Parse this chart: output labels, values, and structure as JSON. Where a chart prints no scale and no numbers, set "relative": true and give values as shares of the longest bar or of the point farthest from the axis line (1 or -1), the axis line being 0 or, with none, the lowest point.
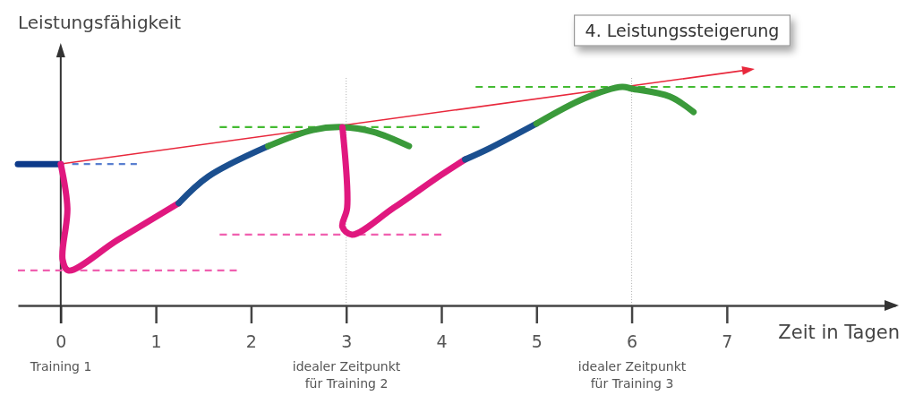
{
  "chart_data": {
    "type": "line",
    "relative": true,
    "xlabel": "Zeit in Tagen",
    "ylabel": "Leistungsfähigkeit",
    "xlim": [
      -0.45,
      8.77
    ],
    "xticks": [
      0,
      1,
      2,
      3,
      4,
      5,
      6,
      7
    ],
    "tick_labels": "x",
    "marker": "none",
    "annotations": [
      "4. Leistungssteigerung",
      "Training 1",
      "idealer Zeitpunkt\nfür Training 2",
      "idealer Zeitpunkt\nfür Training 3"
    ],
    "ref_lines": [
      {
        "axis": "x",
        "value": 3,
        "color": "#b0b0b0",
        "line_style": "dotted"
      },
      {
        "axis": "x",
        "value": 6,
        "color": "#b0b0b0",
        "line_style": "dotted"
      }
    ],
    "series": [
      {
        "x": [
          0.12,
          0.8
        ],
        "values": [
          0.647,
          0.647
        ],
        "color": "#5a7fd0",
        "line_style": "dashed"
      },
      {
        "x": [
          -0.45,
          1.85
        ],
        "values": [
          0.16,
          0.16
        ],
        "color": "#f060b0",
        "line_style": "dashed"
      },
      {
        "x": [
          1.67,
          4.0
        ],
        "values": [
          0.324,
          0.324
        ],
        "color": "#f060b0",
        "line_style": "dashed"
      },
      {
        "x": [
          1.67,
          4.4
        ],
        "values": [
          0.816,
          0.816
        ],
        "color": "#44bb33",
        "line_style": "dashed"
      },
      {
        "x": [
          4.36,
          8.77
        ],
        "values": [
          1,
          1
        ],
        "color": "#44bb33",
        "line_style": "dashed"
      },
      {
        "x": [
          -0.45,
          0
        ],
        "values": [
          0.647,
          0.647
        ],
        "color": "#0d3a8a",
        "line_style": "solid"
      },
      {
        "x": [
          0,
          0.07,
          0.02,
          0.08,
          0.6,
          1.24
        ],
        "values": [
          0.647,
          0.443,
          0.209,
          0.16,
          0.3,
          0.468
        ],
        "color": "#e0187f",
        "line_style": "solid"
      },
      {
        "x": [
          1.24,
          1.55,
          2.18
        ],
        "values": [
          0.468,
          0.59,
          0.729
        ],
        "color": "#1b4f8f",
        "line_style": "solid"
      },
      {
        "x": [
          2.18,
          2.65,
          2.96,
          3.28,
          3.66
        ],
        "values": [
          0.729,
          0.803,
          0.816,
          0.795,
          0.729
        ],
        "color": "#3a9a3a",
        "line_style": "solid"
      },
      {
        "x": [
          2.96,
          3.01,
          2.96,
          3.06,
          3.5,
          4.0,
          4.25
        ],
        "values": [
          0.816,
          0.447,
          0.36,
          0.324,
          0.447,
          0.598,
          0.668
        ],
        "color": "#e0187f",
        "line_style": "solid"
      },
      {
        "x": [
          4.25,
          4.5,
          5.0
        ],
        "values": [
          0.668,
          0.718,
          0.832
        ],
        "color": "#1b4f8f",
        "line_style": "solid"
      },
      {
        "x": [
          5.0,
          5.5,
          5.9,
          6.0,
          6.4,
          6.65
        ],
        "values": [
          0.832,
          0.947,
          1,
          0.992,
          0.956,
          0.885
        ],
        "color": "#3a9a3a",
        "line_style": "solid"
      }
    ]
  }
}
